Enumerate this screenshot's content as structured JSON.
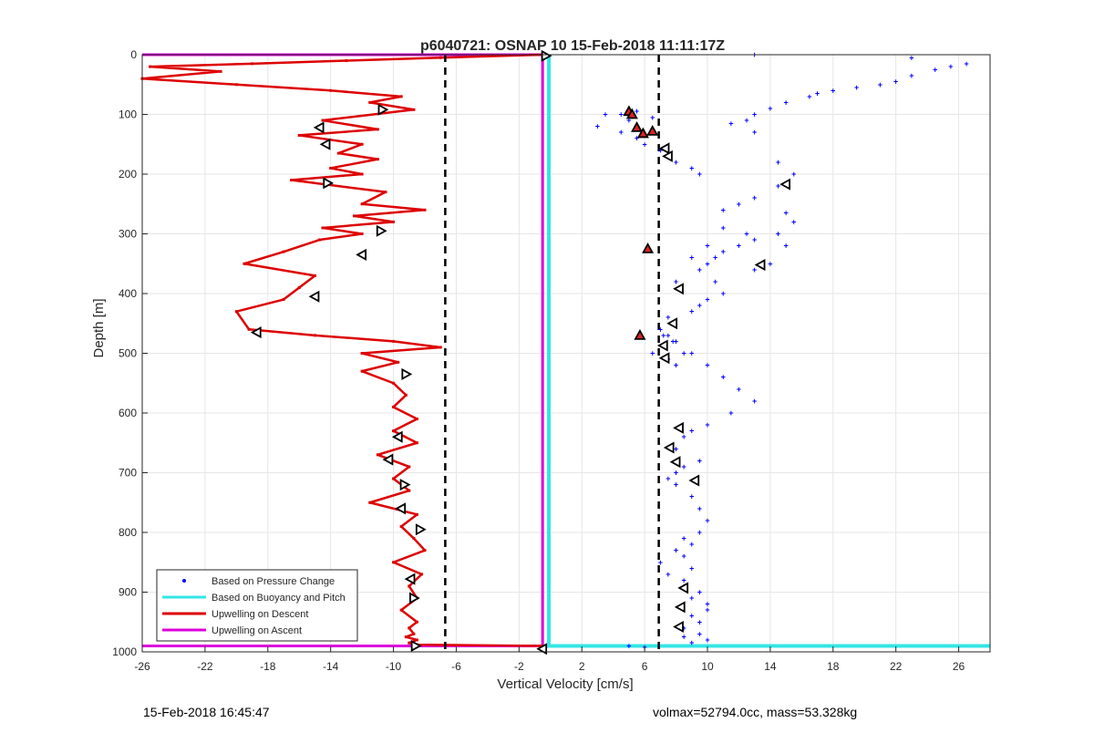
{
  "figure": {
    "footer_left": "15-Feb-2018 16:45:47",
    "footer_right": "volmax=52794.0cc, mass=53.328kg"
  },
  "chart_data": {
    "type": "scatter",
    "title": "p6040721: OSNAP 10 15-Feb-2018 11:11:17Z",
    "xlabel": "Vertical Velocity [cm/s]",
    "ylabel": "Depth [m]",
    "xlim": [
      -26,
      28
    ],
    "ylim": [
      0,
      1000
    ],
    "y_reversed": true,
    "grid": true,
    "legend_position": "bottom-left",
    "x_ticks": [
      -26,
      -22,
      -18,
      -14,
      -10,
      -6,
      -2,
      2,
      6,
      10,
      14,
      18,
      22,
      26
    ],
    "x_tick_labels": [
      "-26",
      "-22",
      "-18",
      "-14",
      "-10",
      "-6",
      "-2",
      "2",
      "6",
      "10",
      "14",
      "18",
      "22",
      "26"
    ],
    "y_ticks": [
      0,
      100,
      200,
      300,
      400,
      500,
      600,
      700,
      800,
      900,
      1000
    ],
    "y_tick_labels": [
      "0",
      "100",
      "200",
      "300",
      "400",
      "500",
      "600",
      "700",
      "800",
      "900",
      "1000"
    ],
    "legend": [
      {
        "label": "Based on Pressure Change",
        "style": "dot",
        "color": "#0000ff"
      },
      {
        "label": "Based on Buoyancy and Pitch",
        "style": "line",
        "color": "#33e6e6"
      },
      {
        "label": "Upwelling on Descent",
        "style": "line",
        "color": "#dd0000"
      },
      {
        "label": "Upwelling on Ascent",
        "style": "line",
        "color": "#dd00dd"
      }
    ],
    "threshold_lines": {
      "x": [
        -6.7,
        6.9
      ],
      "color": "#000000",
      "style": "dashed"
    },
    "series": [
      {
        "name": "Upwelling on Descent",
        "color": "#dd0000",
        "x": [
          -0.5,
          -7,
          -13,
          -19,
          -25.5,
          -21,
          -26,
          -20,
          -14,
          -9.5,
          -11.5,
          -8.7,
          -14.5,
          -11,
          -16,
          -12,
          -13.5,
          -11,
          -14,
          -12,
          -16.5,
          -10.5,
          -12,
          -8,
          -12.5,
          -10,
          -14.5,
          -12,
          -14.7,
          -17,
          -19.5,
          -15,
          -16,
          -17,
          -20,
          -19.2,
          -15,
          -10,
          -7,
          -12,
          -9.7,
          -12,
          -10,
          -9.2,
          -10,
          -8.5,
          -10,
          -8.5,
          -11,
          -9,
          -10,
          -9,
          -11.5,
          -8.5,
          -9.5,
          -8.7,
          -8,
          -10,
          -8.2,
          -9,
          -8.5,
          -9.5,
          -8.5,
          -9,
          -8.7,
          -9.2,
          -8.5,
          -9,
          -8.5,
          -0.5
        ],
        "y": [
          0,
          5,
          10,
          15,
          20,
          28,
          40,
          50,
          60,
          70,
          80,
          92,
          110,
          125,
          135,
          150,
          165,
          175,
          190,
          200,
          210,
          230,
          250,
          260,
          270,
          280,
          290,
          300,
          310,
          330,
          350,
          370,
          390,
          410,
          430,
          460,
          470,
          480,
          490,
          500,
          515,
          530,
          550,
          570,
          590,
          610,
          630,
          650,
          670,
          690,
          710,
          730,
          750,
          770,
          790,
          810,
          830,
          850,
          870,
          890,
          910,
          930,
          950,
          960,
          970,
          975,
          980,
          985,
          988,
          990
        ]
      },
      {
        "name": "Upwelling on Ascent",
        "color": "#dd00dd",
        "x": [
          -26,
          -0.5,
          -0.5,
          -26
        ],
        "y": [
          0,
          0,
          990,
          990
        ]
      },
      {
        "name": "Based on Buoyancy and Pitch",
        "color": "#33e6e6",
        "x": [
          -0.1,
          -0.1,
          28
        ],
        "y": [
          0,
          990,
          990
        ]
      },
      {
        "name": "Based on Pressure Change",
        "color": "#0000ff",
        "x": [
          26.5,
          25.5,
          24.5,
          23,
          22,
          21,
          19.5,
          18,
          17,
          16.5,
          15,
          14,
          13,
          12.5,
          11.5,
          13,
          14.5,
          15.5,
          14.5,
          13,
          12,
          11,
          15,
          15.5,
          14.5,
          13,
          12,
          11,
          10.5,
          10,
          9.5,
          10.5,
          11,
          10,
          9.5,
          9,
          13,
          14,
          15,
          12.5,
          11,
          10,
          9,
          8,
          7.5,
          7,
          7.5,
          8,
          9,
          10,
          11,
          12,
          13,
          11.5,
          10,
          9,
          8.5,
          8,
          9.5,
          8.5,
          8,
          7.5,
          8,
          9,
          9.5,
          10,
          9.5,
          9,
          8.5,
          9,
          8.5,
          9.5,
          10,
          9,
          8.5,
          9.5,
          10,
          9,
          8.5,
          9.5,
          10,
          9,
          8.5,
          7.5,
          7,
          8,
          8.5,
          3,
          4.5,
          5.5,
          6,
          7,
          7.5,
          8,
          9,
          9.5,
          7.2,
          7.8,
          8.5,
          6.5,
          7.5,
          8,
          4.5,
          5,
          5.5,
          6.5,
          3.5,
          5,
          6,
          13,
          23
        ],
        "y": [
          15,
          20,
          25,
          35,
          45,
          50,
          55,
          60,
          65,
          70,
          80,
          90,
          100,
          110,
          115,
          130,
          180,
          200,
          220,
          240,
          250,
          260,
          265,
          280,
          300,
          310,
          320,
          330,
          340,
          350,
          360,
          380,
          400,
          410,
          420,
          430,
          360,
          350,
          320,
          300,
          290,
          320,
          340,
          380,
          440,
          460,
          470,
          480,
          500,
          520,
          540,
          560,
          580,
          600,
          620,
          630,
          640,
          660,
          680,
          690,
          700,
          710,
          720,
          740,
          760,
          780,
          800,
          820,
          840,
          860,
          880,
          900,
          920,
          940,
          960,
          970,
          980,
          985,
          975,
          950,
          930,
          910,
          890,
          870,
          850,
          830,
          810,
          120,
          130,
          140,
          150,
          160,
          170,
          180,
          190,
          200,
          470,
          480,
          500,
          500,
          510,
          520,
          100,
          110,
          95,
          105,
          100,
          990,
          992,
          0,
          5
        ]
      }
    ],
    "markers": {
      "right_pointing": {
        "x": [
          -0.3,
          -10.7,
          -14.2,
          -10.8,
          -9.2,
          -9.3,
          -8.3,
          -8.7,
          -8.6
        ],
        "y": [
          2,
          92,
          215,
          295,
          535,
          720,
          795,
          910,
          990
        ]
      },
      "left_pointing": {
        "x": [
          -14.7,
          -14.3,
          -12,
          -15,
          -18.7,
          -9.7,
          -10.3,
          -9.5,
          -8.9,
          7.3,
          7.5,
          15,
          13.4,
          8.2,
          7.8,
          7.2,
          7.3,
          8.2,
          7.6,
          8,
          9.2,
          8.5,
          8.3,
          8.2,
          -0.5
        ],
        "y": [
          122,
          150,
          335,
          405,
          465,
          640,
          678,
          760,
          878,
          157,
          170,
          217,
          352,
          392,
          450,
          487,
          508,
          625,
          658,
          682,
          713,
          893,
          925,
          958,
          995
        ]
      },
      "up_triangles": {
        "x": [
          5,
          5.2,
          5.5,
          6.5,
          5.9,
          6.2,
          5.7
        ],
        "y": [
          95,
          100,
          122,
          128,
          132,
          325,
          470
        ]
      }
    }
  }
}
